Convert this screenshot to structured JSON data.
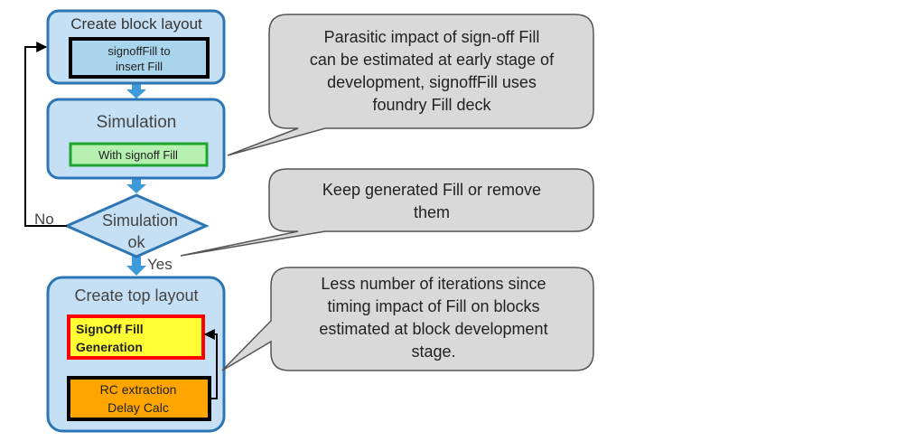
{
  "blocks": {
    "create_block_layout": {
      "title": "Create block layout",
      "inner_line1": "signoffFill to",
      "inner_line2": "insert Fill"
    },
    "simulation": {
      "title": "Simulation",
      "inner": "With signoff Fill"
    },
    "decision": {
      "line1": "Simulation",
      "line2": "ok",
      "no_label": "No",
      "yes_label": "Yes"
    },
    "create_top_layout": {
      "title": "Create top layout",
      "fill_gen_line1": "SignOff Fill",
      "fill_gen_line2": "Generation",
      "rc_line1": "RC extraction",
      "rc_line2": "Delay Calc"
    }
  },
  "callouts": {
    "parasitic": {
      "line1": "Parasitic impact of sign-off Fill",
      "line2": "can be estimated at early stage of",
      "line3": "development, signoffFill  uses",
      "line4": "foundry Fill  deck"
    },
    "keep": {
      "line1": "Keep generated Fill  or remove",
      "line2": "them"
    },
    "iterations": {
      "line1": "Less number of iterations since",
      "line2": "timing impact of Fill  on blocks",
      "line3": "estimated at block development",
      "line4": "stage."
    }
  },
  "colors": {
    "flow_fill": "#c5e0f5",
    "flow_stroke": "#2e75b6",
    "arrow": "#3e9ad8",
    "callout_fill": "#d9d9d9",
    "callout_stroke": "#555555",
    "green_fill": "#b6f0b0",
    "green_stroke": "#1fa32f",
    "yellow_fill": "#ffff33",
    "red_stroke": "#ff0000",
    "orange_fill": "#ffa500"
  }
}
